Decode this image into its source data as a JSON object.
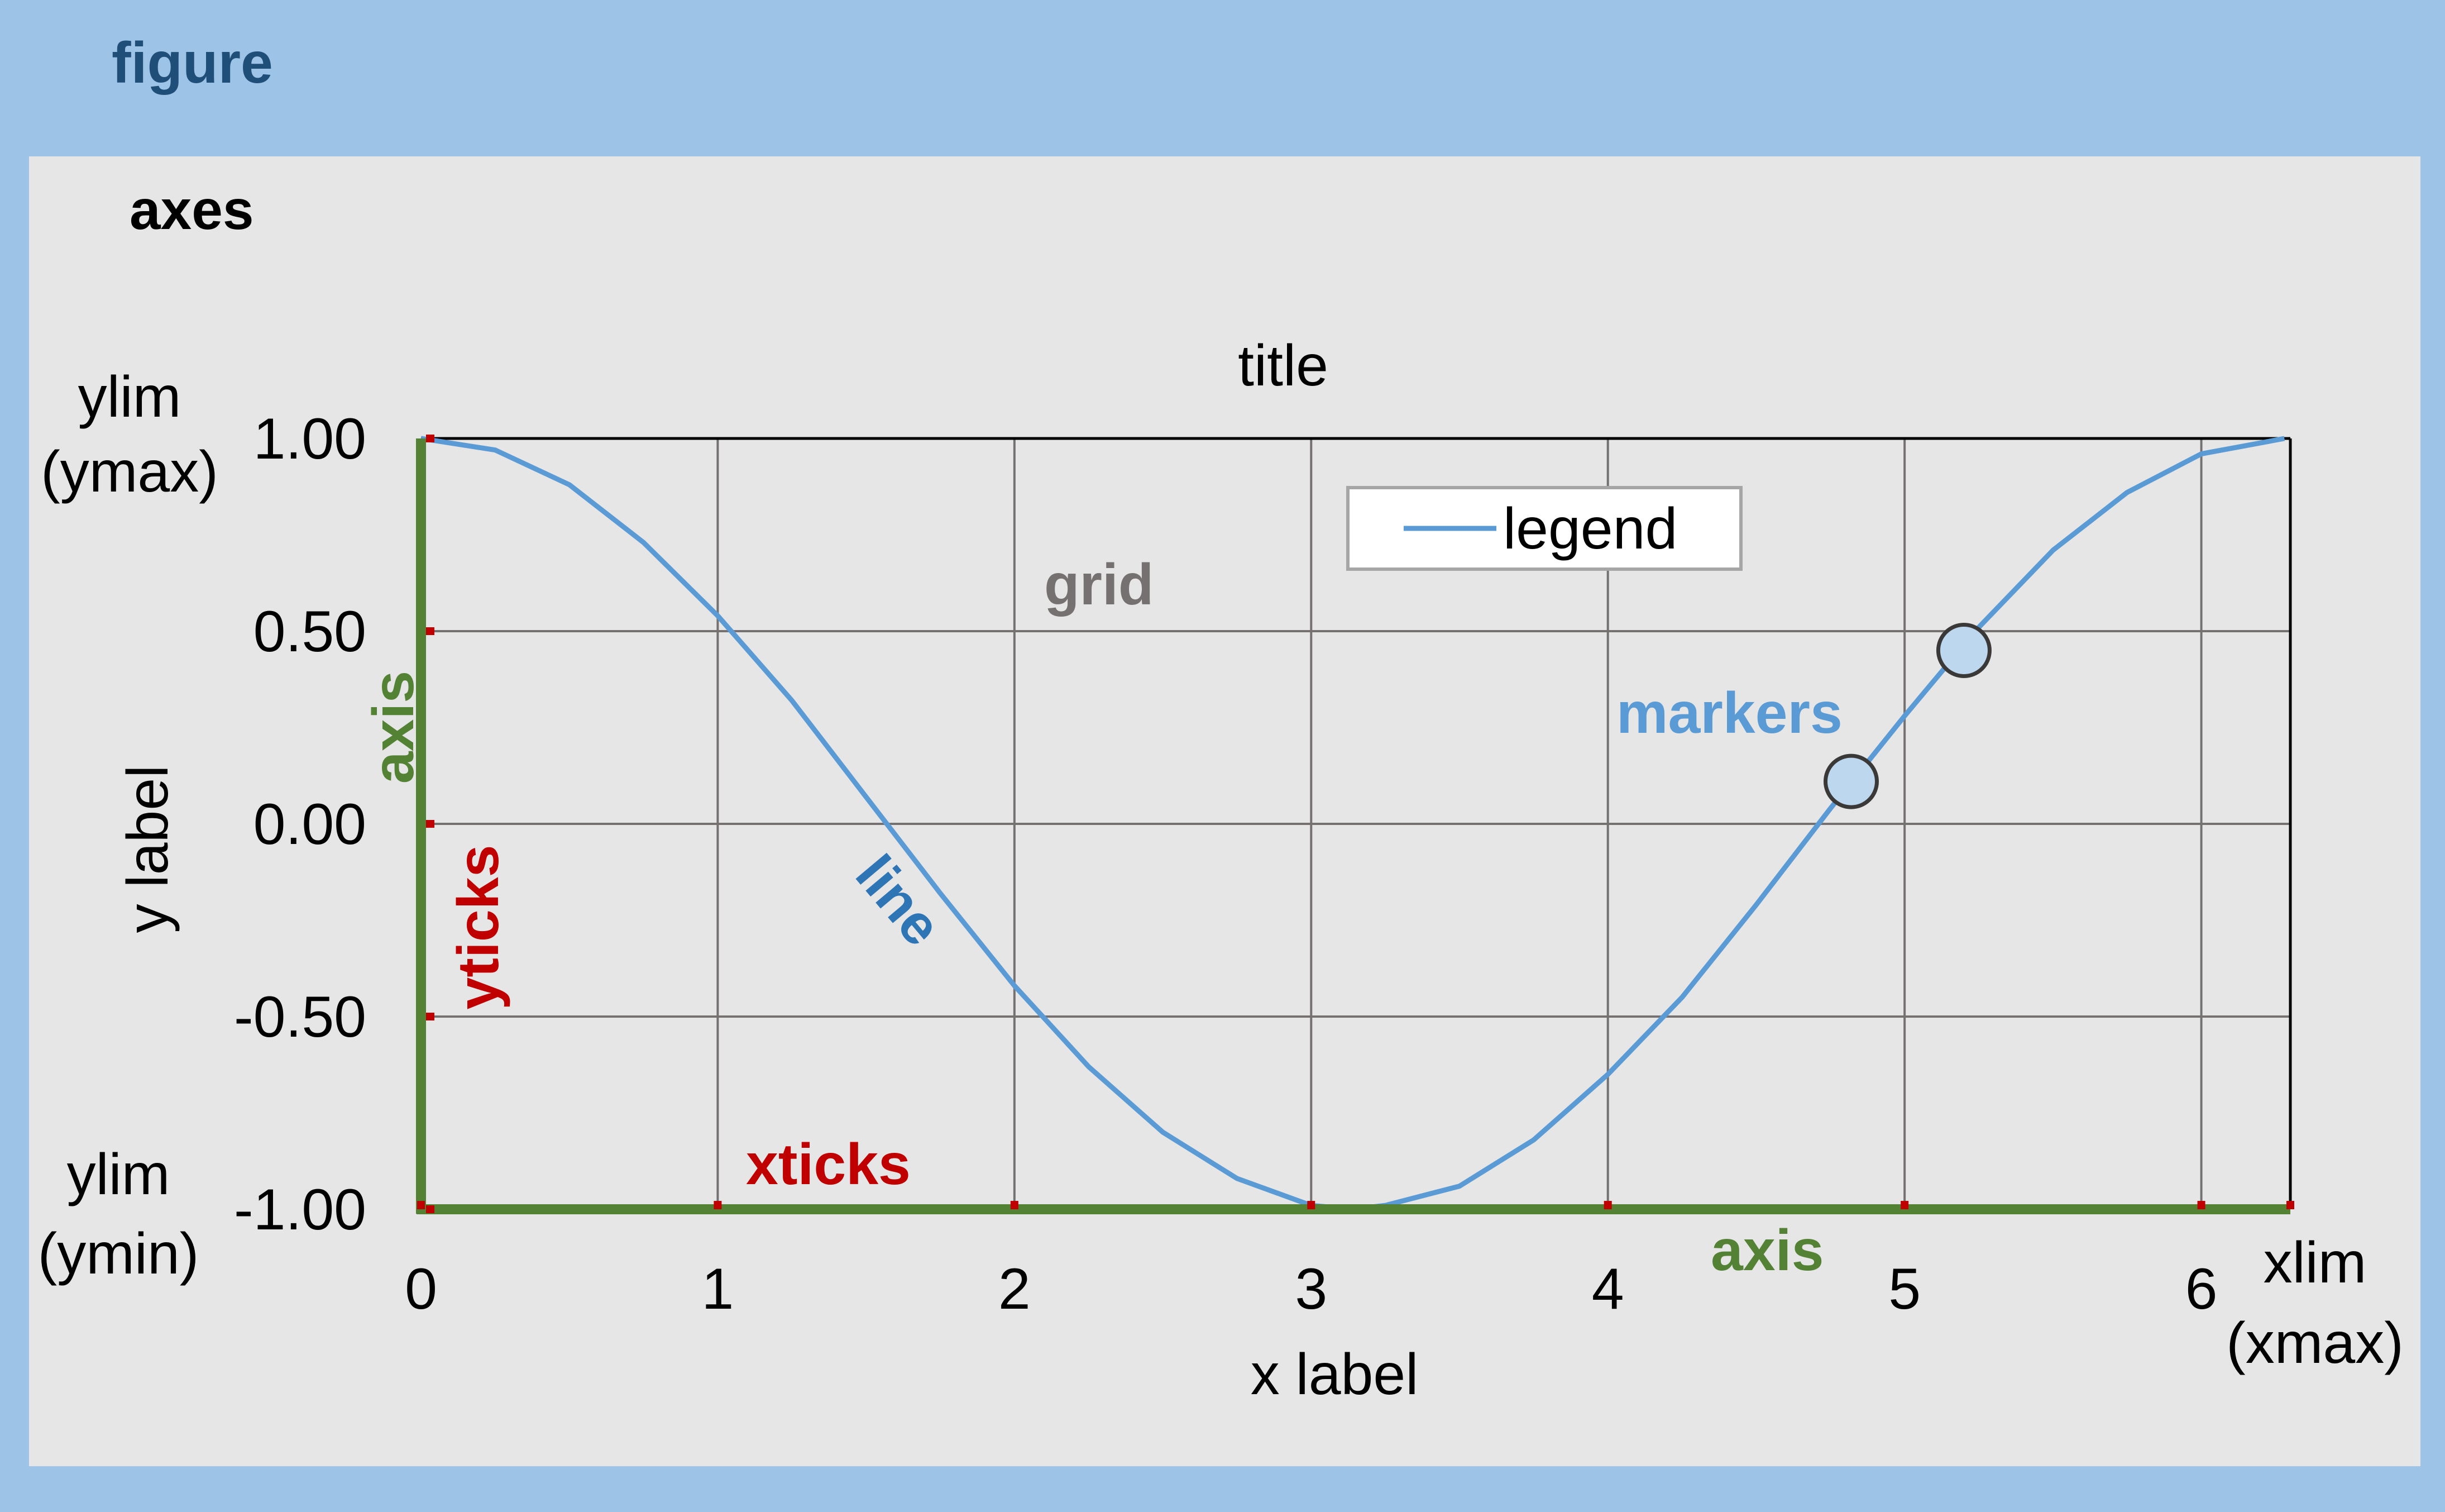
{
  "colors": {
    "figure_bg": "#9dc3e6",
    "axes_bg": "#e7e6e6",
    "figure_label": "#1f4e79",
    "axis_green": "#548235",
    "tick_red": "#c00000",
    "line_blue": "#5b9bd5",
    "grid_gray": "#767171",
    "marker_fill": "#bdd7ee",
    "marker_edge": "#3b3838",
    "text_black": "#000000",
    "line_label": "#2e75b6"
  },
  "labels": {
    "figure": "figure",
    "axes": "axes",
    "title": "title",
    "legend": "legend",
    "grid": "grid",
    "markers": "markers",
    "line": "line",
    "axis_y": "axis",
    "axis_x": "axis",
    "xticks": "xticks",
    "yticks": "yticks",
    "x_label": "x label",
    "y_label": "y label",
    "ylim_ymax_1": "ylim",
    "ylim_ymax_2": "(ymax)",
    "ylim_ymin_1": "ylim",
    "ylim_ymin_2": "(ymin)",
    "xlim_xmax_1": "xlim",
    "xlim_xmax_2": "(xmax)"
  },
  "chart_data": {
    "type": "line",
    "title": "title",
    "xlabel": "x label",
    "ylabel": "y label",
    "xlim": [
      0,
      6.3
    ],
    "ylim": [
      -1.0,
      1.0
    ],
    "grid": true,
    "legend_placement": "top-center",
    "x_ticks": [
      0,
      1,
      2,
      3,
      4,
      5,
      6
    ],
    "x_tick_labels": [
      "0",
      "1",
      "2",
      "3",
      "4",
      "5",
      "6"
    ],
    "y_ticks": [
      1.0,
      0.5,
      0.0,
      -0.5,
      -1.0
    ],
    "y_tick_labels": [
      "1.00",
      "0.50",
      "0.00",
      "-0.50",
      "-1.00"
    ],
    "series": [
      {
        "name": "legend",
        "x": [
          0,
          0.25,
          0.5,
          0.75,
          1.0,
          1.25,
          1.5,
          1.75,
          2.0,
          2.25,
          2.5,
          2.75,
          3.0,
          3.14,
          3.25,
          3.5,
          3.75,
          4.0,
          4.25,
          4.5,
          4.75,
          5.0,
          5.25,
          5.5,
          5.75,
          6.0,
          6.28
        ],
        "y": [
          1.0,
          0.97,
          0.88,
          0.73,
          0.54,
          0.32,
          0.07,
          -0.18,
          -0.42,
          -0.63,
          -0.8,
          -0.92,
          -0.99,
          -1.0,
          -0.99,
          -0.94,
          -0.82,
          -0.65,
          -0.45,
          -0.21,
          0.04,
          0.28,
          0.51,
          0.71,
          0.86,
          0.96,
          1.0
        ]
      }
    ],
    "markers": [
      {
        "x": 4.82,
        "y": 0.11
      },
      {
        "x": 5.2,
        "y": 0.45
      }
    ]
  }
}
